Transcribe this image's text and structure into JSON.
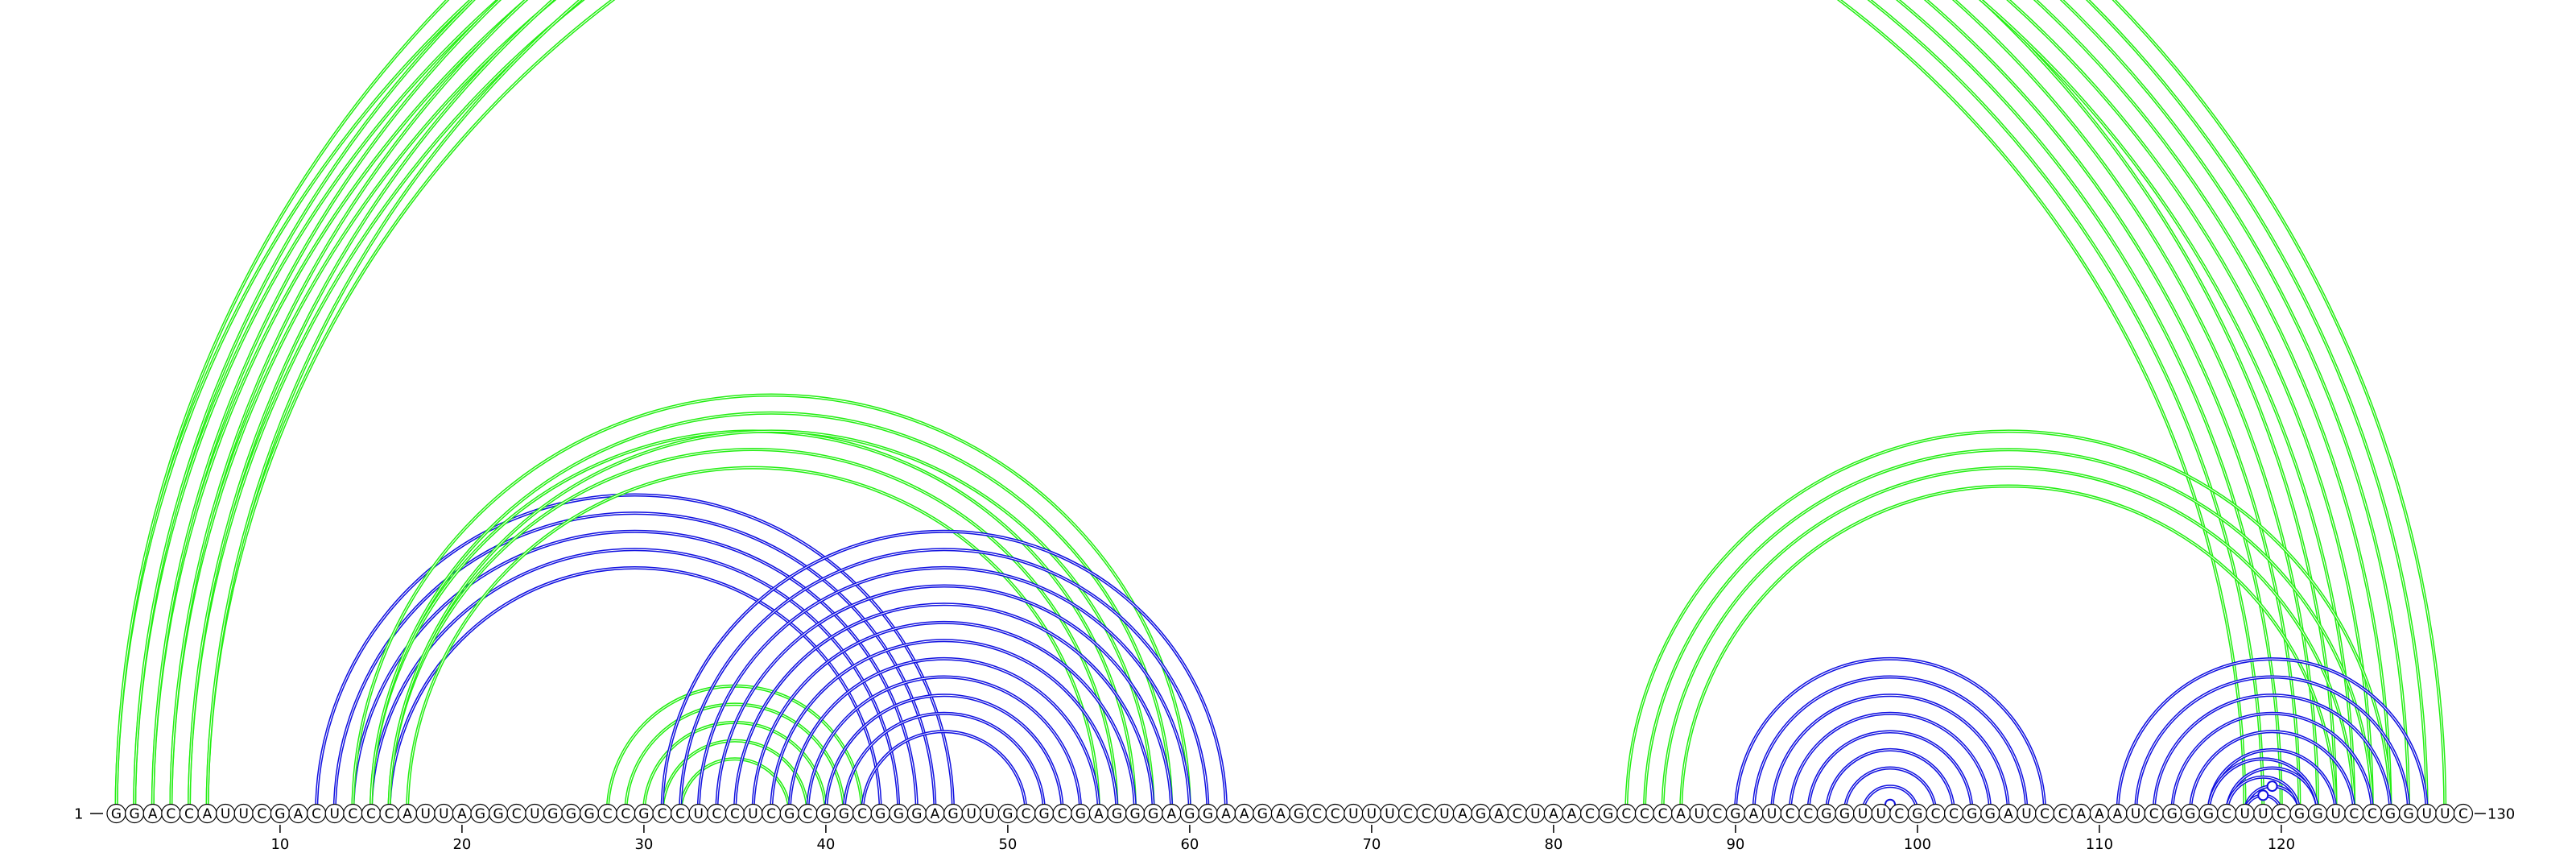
{
  "sequence": "GGACCAUUCGACUCCCAUUAGGCUGGGCCGCCUCCUCGCGGCGGGAGUUGCGCGAGGGAGGAAGAGCCUUUCCUAGACUAACGCCCAUCGAUCCGGUUCGCCGGAUCCAAAUCGGGCUUCGGUCCGGUUC",
  "start_label": "1",
  "end_label": "130",
  "tick_positions": [
    10,
    20,
    30,
    40,
    50,
    60,
    70,
    80,
    90,
    100,
    110,
    120
  ],
  "colors": {
    "green": "#22ee11",
    "blue": "#1010e0"
  },
  "arc_groups": [
    {
      "color": "green",
      "pairs": [
        [
          1,
          123
        ],
        [
          2,
          122
        ],
        [
          3,
          121
        ],
        [
          4,
          120
        ],
        [
          5,
          119
        ],
        [
          6,
          118
        ]
      ],
      "marker_index": null
    },
    {
      "color": "green",
      "pairs": [
        [
          3,
          127
        ],
        [
          4,
          126
        ],
        [
          5,
          125
        ],
        [
          6,
          124
        ]
      ],
      "marker_index": null
    },
    {
      "color": "green",
      "pairs": [
        [
          1,
          129
        ],
        [
          2,
          128
        ]
      ],
      "marker_index": 1
    },
    {
      "color": "blue",
      "pairs": [
        [
          12,
          47
        ],
        [
          13,
          46
        ],
        [
          14,
          45
        ],
        [
          15,
          44
        ],
        [
          16,
          43
        ]
      ],
      "marker_index": null
    },
    {
      "color": "green",
      "pairs": [
        [
          15,
          57
        ],
        [
          16,
          56
        ],
        [
          17,
          55
        ]
      ],
      "marker_index": null
    },
    {
      "color": "green",
      "pairs": [
        [
          14,
          60
        ],
        [
          15,
          59
        ],
        [
          16,
          58
        ]
      ],
      "marker_index": null
    },
    {
      "color": "green",
      "pairs": [
        [
          28,
          42
        ],
        [
          29,
          41
        ],
        [
          30,
          40
        ],
        [
          31,
          39
        ],
        [
          32,
          38
        ]
      ],
      "marker_index": null
    },
    {
      "color": "blue",
      "pairs": [
        [
          31,
          62
        ],
        [
          32,
          61
        ],
        [
          33,
          60
        ],
        [
          34,
          59
        ],
        [
          35,
          58
        ],
        [
          36,
          57
        ],
        [
          37,
          56
        ],
        [
          38,
          55
        ],
        [
          39,
          54
        ],
        [
          40,
          53
        ],
        [
          41,
          52
        ],
        [
          42,
          51
        ]
      ],
      "marker_index": null
    },
    {
      "color": "green",
      "pairs": [
        [
          84,
          126
        ],
        [
          85,
          125
        ],
        [
          86,
          124
        ],
        [
          87,
          123
        ]
      ],
      "marker_index": null
    },
    {
      "color": "blue",
      "pairs": [
        [
          90,
          107
        ],
        [
          91,
          106
        ],
        [
          92,
          105
        ],
        [
          93,
          104
        ],
        [
          94,
          103
        ],
        [
          95,
          102
        ],
        [
          96,
          101
        ],
        [
          97,
          100
        ],
        [
          98,
          99
        ]
      ],
      "marker_index": 8
    },
    {
      "color": "blue",
      "pairs": [
        [
          111,
          128
        ],
        [
          112,
          127
        ],
        [
          113,
          126
        ],
        [
          114,
          125
        ],
        [
          115,
          124
        ],
        [
          116,
          123
        ],
        [
          117,
          122
        ],
        [
          118,
          121
        ]
      ],
      "marker_index": 7
    },
    {
      "color": "blue",
      "pairs": [
        [
          116,
          122
        ],
        [
          117,
          121
        ],
        [
          118,
          120
        ]
      ],
      "marker_index": 2
    }
  ]
}
